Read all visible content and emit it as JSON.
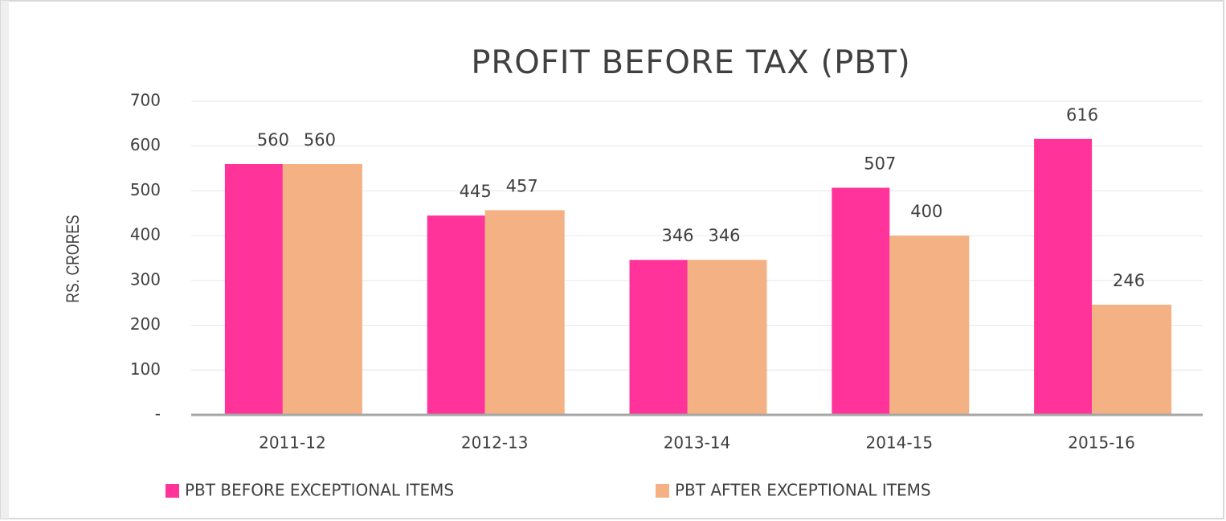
{
  "chart_data": {
    "type": "bar",
    "title": "PROFIT BEFORE TAX (PBT)",
    "y_label": "RS. CRORES",
    "categories": [
      "2011-12",
      "2012-13",
      "2013-14",
      "2014-15",
      "2015-16"
    ],
    "series": [
      {
        "name": "PBT BEFORE EXCEPTIONAL ITEMS",
        "color": "#ff3399",
        "values": [
          560,
          445,
          346,
          507,
          616
        ]
      },
      {
        "name": "PBT AFTER EXCEPTIONAL ITEMS",
        "color": "#f4b183",
        "values": [
          560,
          457,
          346,
          400,
          246
        ]
      }
    ],
    "ylim": [
      0,
      700
    ],
    "yticks": [
      {
        "value": 0,
        "label": "-"
      },
      100,
      200,
      300,
      400,
      500,
      600,
      700
    ],
    "grid": true,
    "legend": "bottom"
  }
}
